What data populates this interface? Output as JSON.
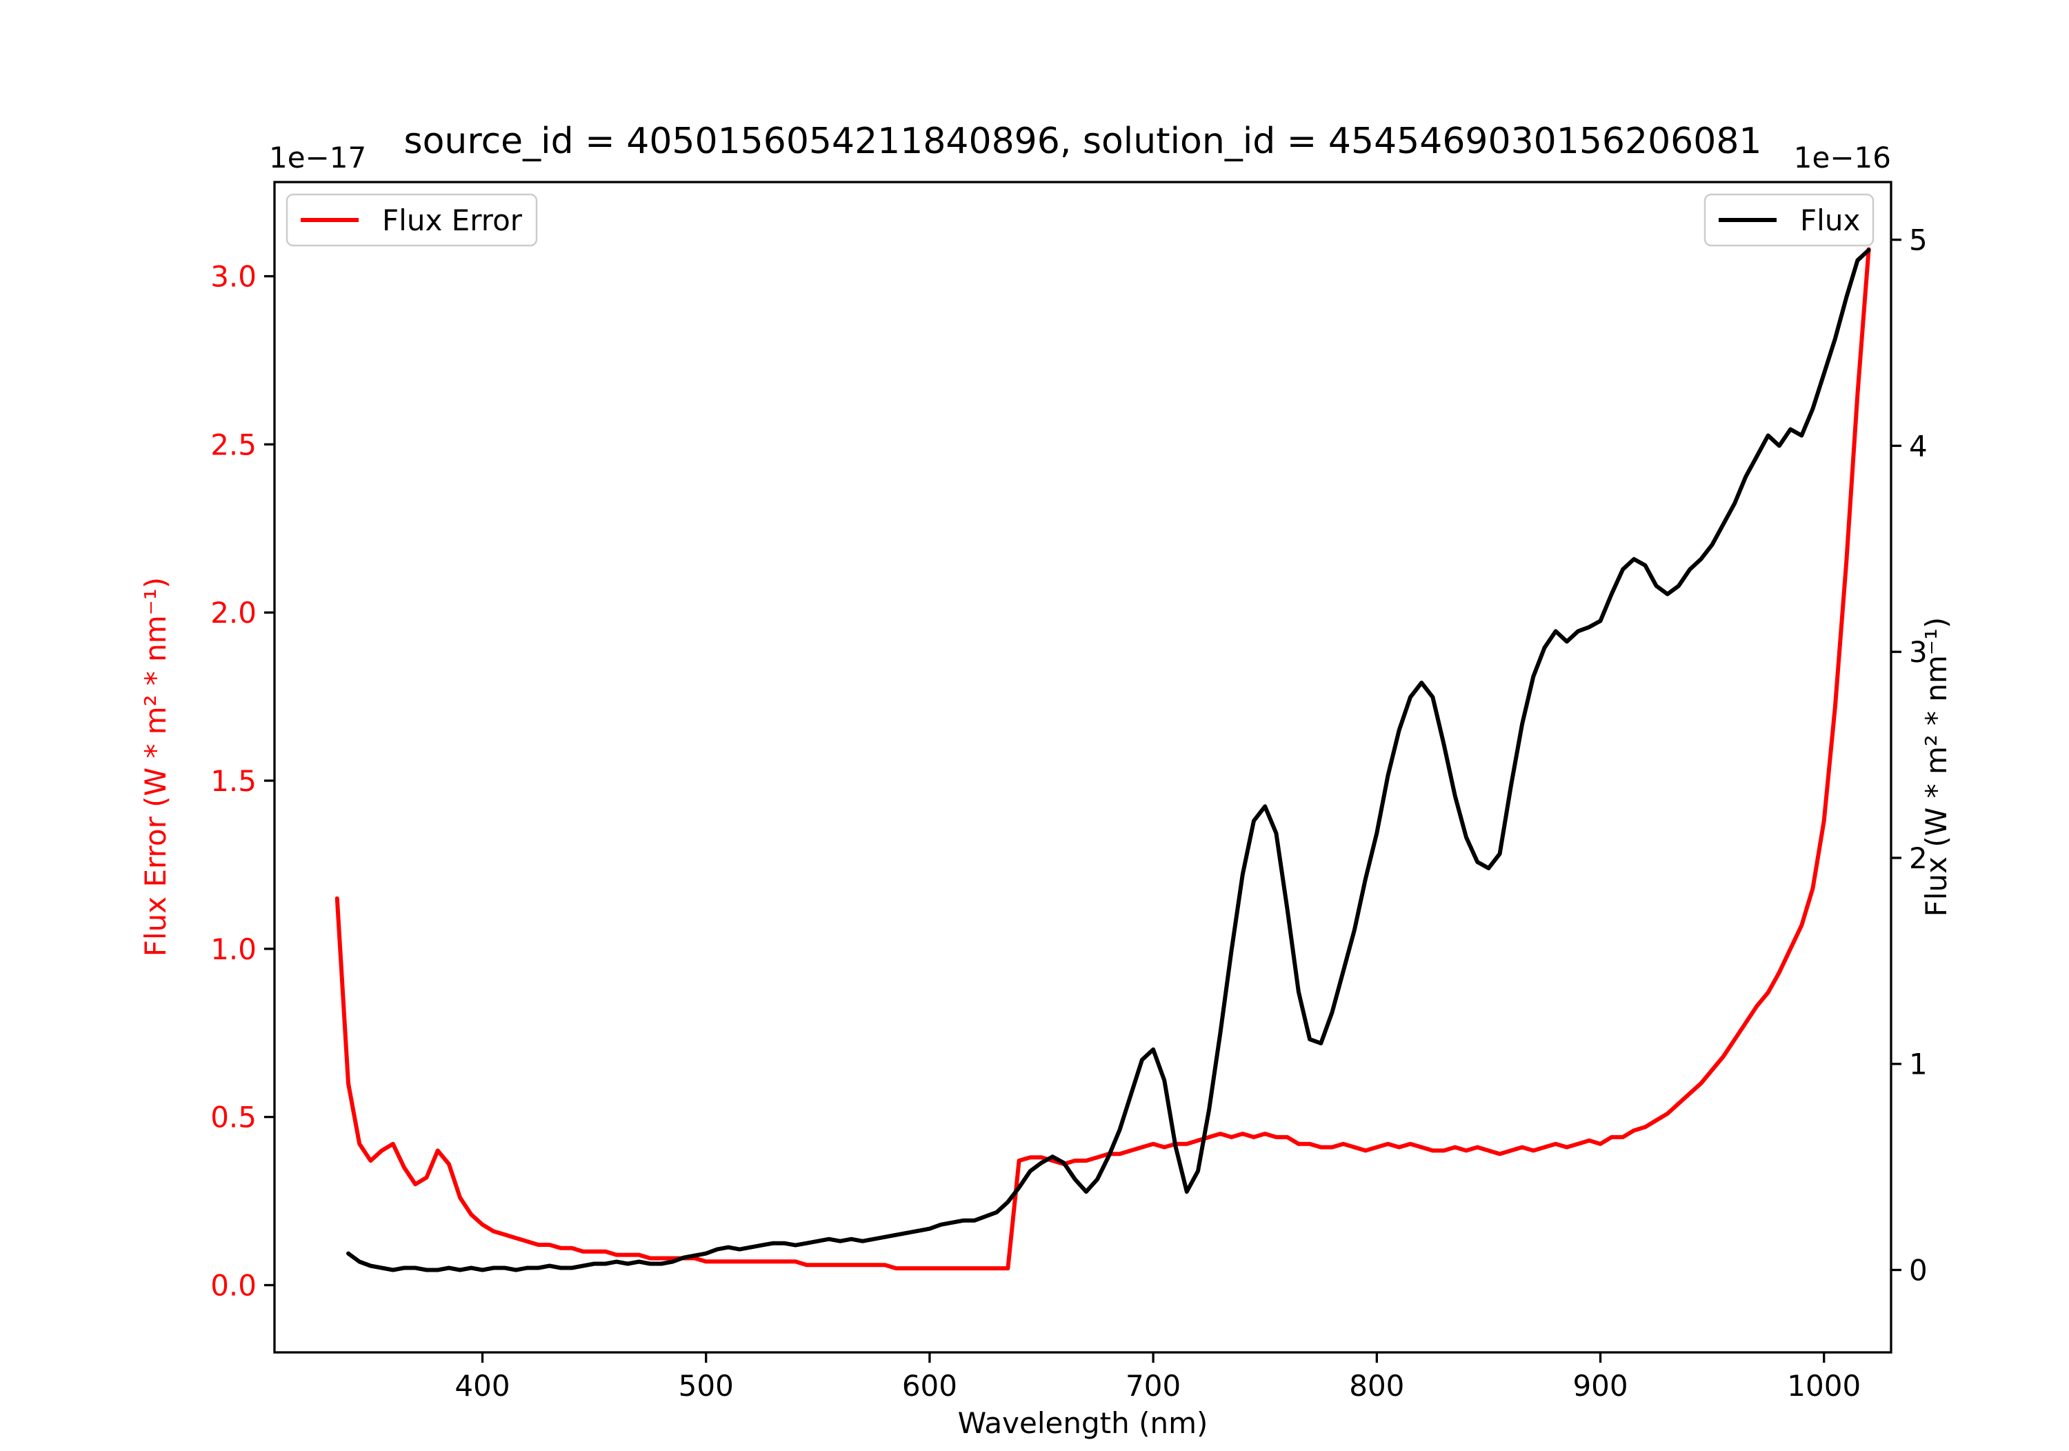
{
  "chart_data": {
    "type": "line",
    "title": "source_id = 4050156054211840896, solution_id = 4545469030156206081",
    "xlabel": "Wavelength (nm)",
    "xlim": [
      307,
      1030
    ],
    "xticks": [
      400,
      500,
      600,
      700,
      800,
      900,
      1000
    ],
    "xtick_labels": [
      "400",
      "500",
      "600",
      "700",
      "800",
      "900",
      "1000"
    ],
    "grid": false,
    "left_axis": {
      "label": "Flux Error (W * m² * nm⁻¹)",
      "offset_text": "1e−17",
      "color": "#ff0000",
      "ylim": [
        -0.2,
        3.28
      ],
      "tick_values": [
        0.0,
        0.5,
        1.0,
        1.5,
        2.0,
        2.5,
        3.0
      ],
      "tick_labels": [
        "0.0",
        "0.5",
        "1.0",
        "1.5",
        "2.0",
        "2.5",
        "3.0"
      ]
    },
    "right_axis": {
      "label": "Flux (W * m² * nm⁻¹)",
      "offset_text": "1e−16",
      "color": "#000000",
      "ylim": [
        -0.4,
        5.28
      ],
      "tick_values": [
        0,
        1,
        2,
        3,
        4,
        5
      ],
      "tick_labels": [
        "0",
        "1",
        "2",
        "3",
        "4",
        "5"
      ]
    },
    "legend": [
      {
        "label": "Flux Error",
        "color": "#ff0000",
        "position": "upper-left"
      },
      {
        "label": "Flux",
        "color": "#000000",
        "position": "upper-right"
      }
    ],
    "series": [
      {
        "name": "Flux Error",
        "color": "#ff0000",
        "axis": "left",
        "units_scale": "1e-17",
        "x": [
          335,
          340,
          345,
          350,
          355,
          360,
          365,
          370,
          375,
          380,
          385,
          390,
          395,
          400,
          405,
          410,
          415,
          420,
          425,
          430,
          435,
          440,
          445,
          450,
          455,
          460,
          465,
          470,
          475,
          480,
          485,
          490,
          495,
          500,
          505,
          510,
          515,
          520,
          525,
          530,
          535,
          540,
          545,
          550,
          555,
          560,
          565,
          570,
          575,
          580,
          585,
          590,
          595,
          600,
          605,
          610,
          615,
          620,
          625,
          630,
          635,
          640,
          645,
          650,
          655,
          660,
          665,
          670,
          675,
          680,
          685,
          690,
          695,
          700,
          705,
          710,
          715,
          720,
          725,
          730,
          735,
          740,
          745,
          750,
          755,
          760,
          765,
          770,
          775,
          780,
          785,
          790,
          795,
          800,
          805,
          810,
          815,
          820,
          825,
          830,
          835,
          840,
          845,
          850,
          855,
          860,
          865,
          870,
          875,
          880,
          885,
          890,
          895,
          900,
          905,
          910,
          915,
          920,
          925,
          930,
          935,
          940,
          945,
          950,
          955,
          960,
          965,
          970,
          975,
          980,
          985,
          990,
          995,
          1000,
          1005,
          1010,
          1015,
          1020
        ],
        "y": [
          1.15,
          0.6,
          0.42,
          0.37,
          0.4,
          0.42,
          0.35,
          0.3,
          0.32,
          0.4,
          0.36,
          0.26,
          0.21,
          0.18,
          0.16,
          0.15,
          0.14,
          0.13,
          0.12,
          0.12,
          0.11,
          0.11,
          0.1,
          0.1,
          0.1,
          0.09,
          0.09,
          0.09,
          0.08,
          0.08,
          0.08,
          0.08,
          0.08,
          0.07,
          0.07,
          0.07,
          0.07,
          0.07,
          0.07,
          0.07,
          0.07,
          0.07,
          0.06,
          0.06,
          0.06,
          0.06,
          0.06,
          0.06,
          0.06,
          0.06,
          0.05,
          0.05,
          0.05,
          0.05,
          0.05,
          0.05,
          0.05,
          0.05,
          0.05,
          0.05,
          0.05,
          0.37,
          0.38,
          0.38,
          0.37,
          0.36,
          0.37,
          0.37,
          0.38,
          0.39,
          0.39,
          0.4,
          0.41,
          0.42,
          0.41,
          0.42,
          0.42,
          0.43,
          0.44,
          0.45,
          0.44,
          0.45,
          0.44,
          0.45,
          0.44,
          0.44,
          0.42,
          0.42,
          0.41,
          0.41,
          0.42,
          0.41,
          0.4,
          0.41,
          0.42,
          0.41,
          0.42,
          0.41,
          0.4,
          0.4,
          0.41,
          0.4,
          0.41,
          0.4,
          0.39,
          0.4,
          0.41,
          0.4,
          0.41,
          0.42,
          0.41,
          0.42,
          0.43,
          0.42,
          0.44,
          0.44,
          0.46,
          0.47,
          0.49,
          0.51,
          0.54,
          0.57,
          0.6,
          0.64,
          0.68,
          0.73,
          0.78,
          0.83,
          0.87,
          0.93,
          1.0,
          1.07,
          1.18,
          1.38,
          1.72,
          2.15,
          2.65,
          3.08
        ]
      },
      {
        "name": "Flux",
        "color": "#000000",
        "axis": "right",
        "units_scale": "1e-16",
        "x": [
          340,
          345,
          350,
          355,
          360,
          365,
          370,
          375,
          380,
          385,
          390,
          395,
          400,
          405,
          410,
          415,
          420,
          425,
          430,
          435,
          440,
          445,
          450,
          455,
          460,
          465,
          470,
          475,
          480,
          485,
          490,
          495,
          500,
          505,
          510,
          515,
          520,
          525,
          530,
          535,
          540,
          545,
          550,
          555,
          560,
          565,
          570,
          575,
          580,
          585,
          590,
          595,
          600,
          605,
          610,
          615,
          620,
          625,
          630,
          635,
          640,
          645,
          650,
          655,
          660,
          665,
          670,
          675,
          680,
          685,
          690,
          695,
          700,
          705,
          710,
          715,
          720,
          725,
          730,
          735,
          740,
          745,
          750,
          755,
          760,
          765,
          770,
          775,
          780,
          785,
          790,
          795,
          800,
          805,
          810,
          815,
          820,
          825,
          830,
          835,
          840,
          845,
          850,
          855,
          860,
          865,
          870,
          875,
          880,
          885,
          890,
          895,
          900,
          905,
          910,
          915,
          920,
          925,
          930,
          935,
          940,
          945,
          950,
          955,
          960,
          965,
          970,
          975,
          980,
          985,
          990,
          995,
          1000,
          1005,
          1010,
          1015,
          1020
        ],
        "y": [
          0.08,
          0.04,
          0.02,
          0.01,
          0.0,
          0.01,
          0.01,
          0.0,
          0.0,
          0.01,
          0.0,
          0.01,
          0.0,
          0.01,
          0.01,
          0.0,
          0.01,
          0.01,
          0.02,
          0.01,
          0.01,
          0.02,
          0.03,
          0.03,
          0.04,
          0.03,
          0.04,
          0.03,
          0.03,
          0.04,
          0.06,
          0.07,
          0.08,
          0.1,
          0.11,
          0.1,
          0.11,
          0.12,
          0.13,
          0.13,
          0.12,
          0.13,
          0.14,
          0.15,
          0.14,
          0.15,
          0.14,
          0.15,
          0.16,
          0.17,
          0.18,
          0.19,
          0.2,
          0.22,
          0.23,
          0.24,
          0.24,
          0.26,
          0.28,
          0.33,
          0.4,
          0.48,
          0.52,
          0.55,
          0.52,
          0.44,
          0.38,
          0.44,
          0.55,
          0.68,
          0.85,
          1.02,
          1.07,
          0.92,
          0.6,
          0.38,
          0.48,
          0.78,
          1.15,
          1.55,
          1.92,
          2.18,
          2.25,
          2.12,
          1.75,
          1.35,
          1.12,
          1.1,
          1.25,
          1.45,
          1.65,
          1.9,
          2.12,
          2.4,
          2.62,
          2.78,
          2.85,
          2.78,
          2.55,
          2.3,
          2.1,
          1.98,
          1.95,
          2.02,
          2.35,
          2.65,
          2.88,
          3.02,
          3.1,
          3.05,
          3.1,
          3.12,
          3.15,
          3.28,
          3.4,
          3.45,
          3.42,
          3.32,
          3.28,
          3.32,
          3.4,
          3.45,
          3.52,
          3.62,
          3.72,
          3.85,
          3.95,
          4.05,
          4.0,
          4.08,
          4.05,
          4.18,
          4.35,
          4.52,
          4.72,
          4.9,
          4.95
        ]
      }
    ]
  }
}
